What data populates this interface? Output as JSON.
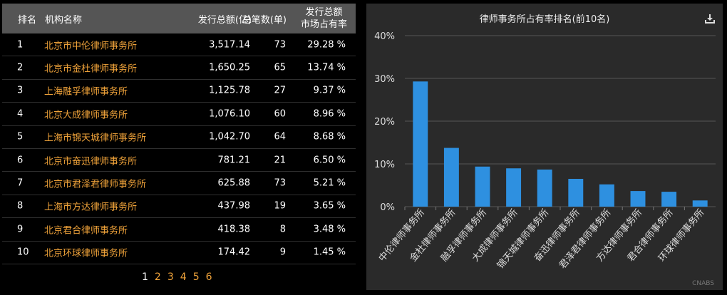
{
  "table": {
    "headers": {
      "rank": "排名",
      "name": "机构名称",
      "amount": "发行总额(亿)",
      "count": "总笔数(单)",
      "share_line1": "发行总额",
      "share_line2": "市场占有率"
    },
    "rows": [
      {
        "rank": "1",
        "name": "北京市中伦律师事务所",
        "amount": "3,517.14",
        "count": "73",
        "share": "29.28 %"
      },
      {
        "rank": "2",
        "name": "北京市金杜律师事务所",
        "amount": "1,650.25",
        "count": "65",
        "share": "13.74 %"
      },
      {
        "rank": "3",
        "name": "上海融孚律师事务所",
        "amount": "1,125.78",
        "count": "27",
        "share": "9.37 %"
      },
      {
        "rank": "4",
        "name": "北京大成律师事务所",
        "amount": "1,076.10",
        "count": "60",
        "share": "8.96 %"
      },
      {
        "rank": "5",
        "name": "上海市锦天城律师事务所",
        "amount": "1,042.70",
        "count": "64",
        "share": "8.68 %"
      },
      {
        "rank": "6",
        "name": "北京市奋迅律师事务所",
        "amount": "781.21",
        "count": "21",
        "share": "6.50 %"
      },
      {
        "rank": "7",
        "name": "北京市君泽君律师事务所",
        "amount": "625.88",
        "count": "73",
        "share": "5.21 %"
      },
      {
        "rank": "8",
        "name": "上海市方达律师事务所",
        "amount": "437.98",
        "count": "19",
        "share": "3.65 %"
      },
      {
        "rank": "9",
        "name": "北京君合律师事务所",
        "amount": "418.38",
        "count": "8",
        "share": "3.48 %"
      },
      {
        "rank": "10",
        "name": "北京环球律师事务所",
        "amount": "174.42",
        "count": "9",
        "share": "1.45 %"
      }
    ]
  },
  "pagination": {
    "pages": [
      "1",
      "2",
      "3",
      "4",
      "5",
      "6"
    ],
    "current": "1"
  },
  "chart": {
    "download_icon": "download-icon",
    "credit": "CNABS"
  },
  "chart_data": {
    "type": "bar",
    "title": "律师事务所占有率排名(前10名)",
    "categories": [
      "中伦律师事务所",
      "金杜律师事务所",
      "融孚律师事务所",
      "大成律师事务所",
      "锦天城律师事务所",
      "奋迅律师事务所",
      "君泽君律师事务所",
      "方达律师事务所",
      "君合律师事务所",
      "环球律师事务所"
    ],
    "values": [
      29.28,
      13.74,
      9.37,
      8.96,
      8.68,
      6.5,
      5.21,
      3.65,
      3.48,
      1.45
    ],
    "ylim": [
      0,
      40
    ],
    "yticks": [
      "0%",
      "10%",
      "20%",
      "30%",
      "40%"
    ],
    "grid": true,
    "bar_color": "#2e90e0"
  }
}
